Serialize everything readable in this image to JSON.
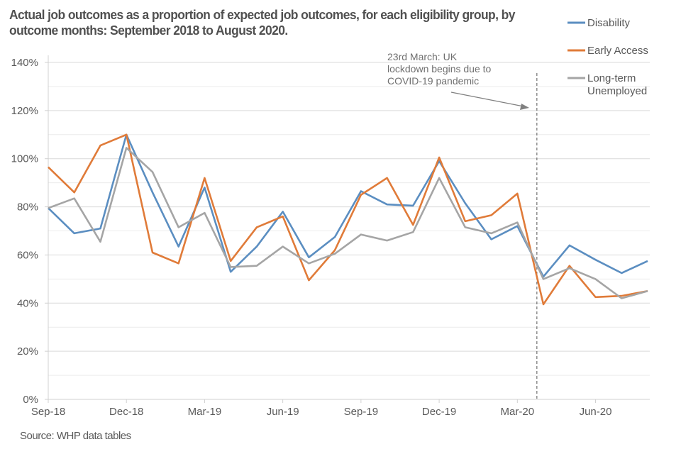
{
  "chart_data": {
    "type": "line",
    "title": "Actual job outcomes as a proportion of expected job outcomes, for each eligibility group, by outcome months: September 2018 to August 2020.",
    "xlabel": "",
    "ylabel": "",
    "x": [
      "Sep-18",
      "Oct-18",
      "Nov-18",
      "Dec-18",
      "Jan-19",
      "Feb-19",
      "Mar-19",
      "Apr-19",
      "May-19",
      "Jun-19",
      "Jul-19",
      "Aug-19",
      "Sep-19",
      "Oct-19",
      "Nov-19",
      "Dec-19",
      "Jan-20",
      "Feb-20",
      "Mar-20",
      "Apr-20",
      "May-20",
      "Jun-20",
      "Jul-20",
      "Aug-20"
    ],
    "x_tick_labels": [
      "Sep-18",
      "Dec-18",
      "Mar-19",
      "Jun-19",
      "Sep-19",
      "Dec-19",
      "Mar-20",
      "Jun-20"
    ],
    "x_tick_every": 3,
    "ylim": [
      0,
      140
    ],
    "y_ticks": [
      0,
      20,
      40,
      60,
      80,
      100,
      120,
      140
    ],
    "y_tick_format": "percent",
    "grid": true,
    "legend_position": "top-right",
    "series": [
      {
        "name": "Disability",
        "color": "#5b8ec1",
        "values": [
          79.5,
          69,
          71,
          110,
          86,
          63.5,
          88,
          53,
          63.5,
          78,
          59,
          67.5,
          86.5,
          81,
          80.5,
          99,
          81.5,
          66.5,
          72,
          51,
          64,
          58,
          52.5,
          57.5
        ]
      },
      {
        "name": "Early Access",
        "color": "#e07b39",
        "values": [
          96.5,
          86,
          105.5,
          110,
          61,
          56.5,
          92,
          57.5,
          71.5,
          76,
          49.5,
          62,
          85,
          92,
          72.5,
          100.5,
          74,
          76.5,
          85.5,
          39.5,
          55.5,
          42.5,
          43,
          45
        ]
      },
      {
        "name": "Long-term Unemployed",
        "name_lines": [
          "Long-term",
          "Unemployed"
        ],
        "color": "#a5a5a5",
        "values": [
          79.5,
          83.5,
          65.5,
          104.5,
          94.5,
          71.5,
          77.5,
          55,
          55.5,
          63.5,
          56.5,
          60.5,
          68.5,
          66,
          69.5,
          92,
          71.5,
          69,
          73.5,
          50,
          54.5,
          50,
          42,
          45
        ]
      }
    ],
    "annotations": [
      {
        "type": "vertical-dashed-line",
        "x_position": "between Mar-20 and Apr-20 (23 March 2020)",
        "x_index": 18.75
      },
      {
        "type": "text-with-arrow",
        "lines": [
          "23rd March: UK",
          "lockdown begins due to",
          "COVID-19 pandemic"
        ]
      }
    ],
    "source": "Source: WHP data tables"
  }
}
